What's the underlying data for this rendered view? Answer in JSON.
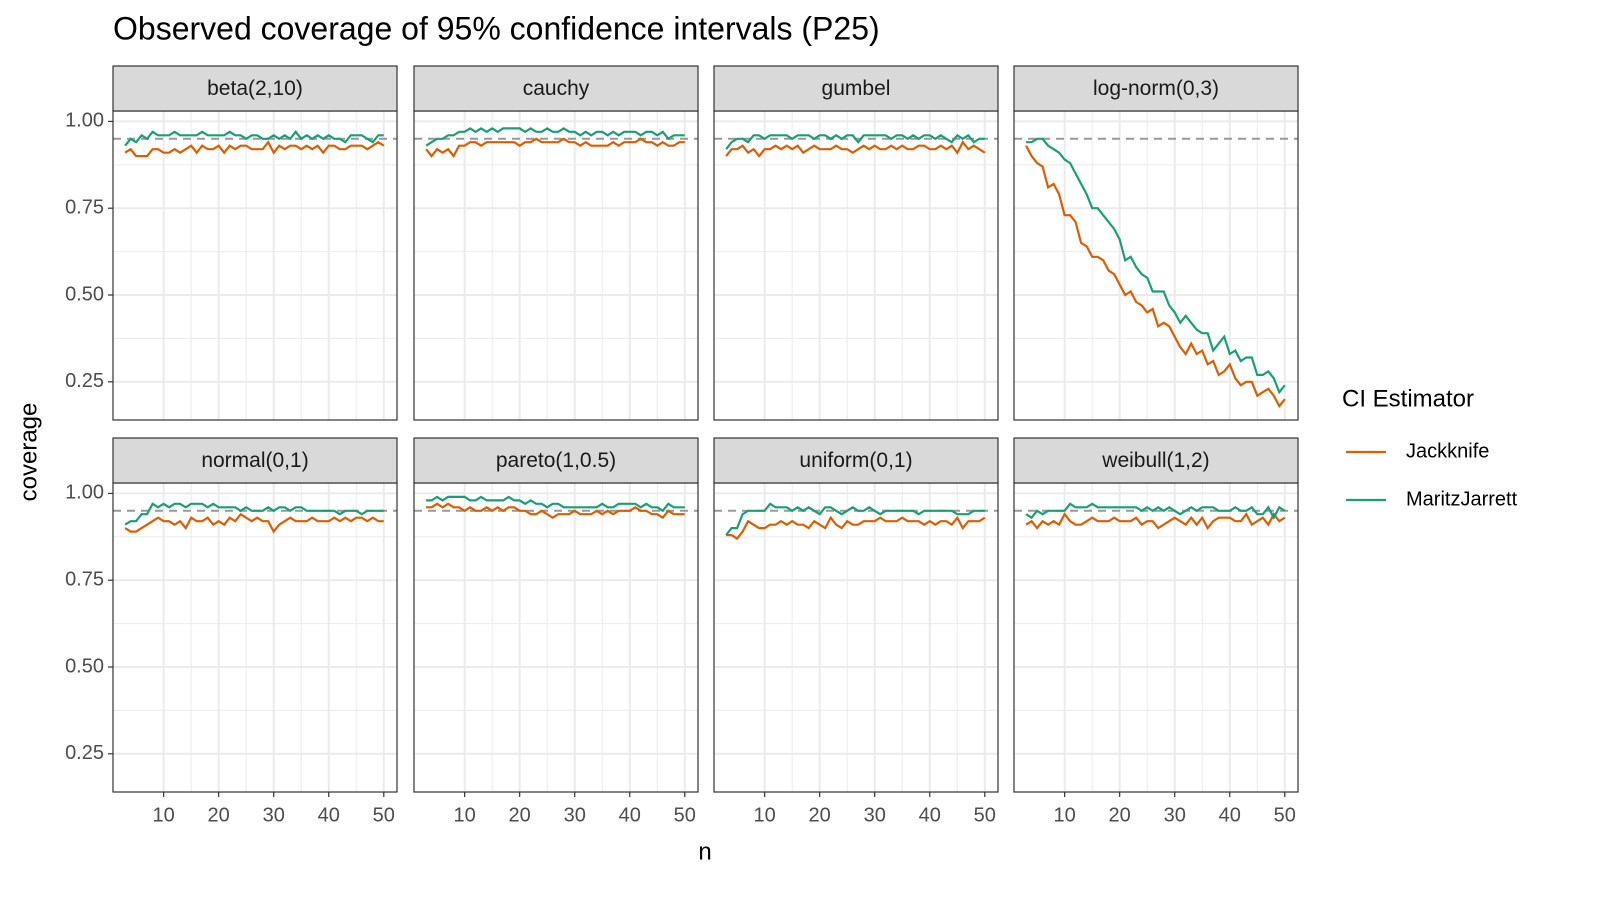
{
  "chart_data": {
    "type": "line",
    "title": "Observed coverage of 95% confidence intervals (P25)",
    "xlabel": "n",
    "ylabel": "coverage",
    "legend_title": "CI Estimator",
    "series": [
      {
        "name": "Jackknife",
        "color": "#d95f02"
      },
      {
        "name": "MaritzJarrett",
        "color": "#1b9e77"
      }
    ],
    "reference_line": 0.95,
    "grid": true,
    "xlim": [
      0.8,
      52.4
    ],
    "xticks": [
      10,
      20,
      30,
      40,
      50
    ],
    "ylim": [
      0.14,
      1.03
    ],
    "yticks": [
      0.25,
      {
        "value": 0.5,
        "label": "0.50"
      },
      0.75,
      {
        "value": 1,
        "label": "1.00"
      }
    ],
    "x": [
      3,
      4,
      5,
      6,
      7,
      8,
      9,
      10,
      11,
      12,
      13,
      14,
      15,
      16,
      17,
      18,
      19,
      20,
      21,
      22,
      23,
      24,
      25,
      26,
      27,
      28,
      29,
      30,
      31,
      32,
      33,
      34,
      35,
      36,
      37,
      38,
      39,
      40,
      41,
      42,
      43,
      44,
      45,
      46,
      47,
      48,
      49,
      50
    ],
    "facets": [
      {
        "title": "beta(2,10)",
        "values": [
          [
            0.91,
            0.92,
            0.9,
            0.9,
            0.9,
            0.92,
            0.92,
            0.91,
            0.91,
            0.92,
            0.91,
            0.92,
            0.93,
            0.91,
            0.93,
            0.92,
            0.92,
            0.93,
            0.91,
            0.93,
            0.92,
            0.93,
            0.93,
            0.92,
            0.92,
            0.92,
            0.94,
            0.91,
            0.93,
            0.92,
            0.93,
            0.93,
            0.92,
            0.93,
            0.92,
            0.93,
            0.91,
            0.93,
            0.93,
            0.92,
            0.92,
            0.93,
            0.93,
            0.93,
            0.92,
            0.93,
            0.94,
            0.93
          ],
          [
            0.93,
            0.95,
            0.94,
            0.96,
            0.95,
            0.97,
            0.96,
            0.96,
            0.96,
            0.97,
            0.96,
            0.96,
            0.96,
            0.96,
            0.97,
            0.96,
            0.96,
            0.96,
            0.96,
            0.97,
            0.96,
            0.96,
            0.95,
            0.96,
            0.96,
            0.95,
            0.95,
            0.96,
            0.95,
            0.96,
            0.95,
            0.97,
            0.95,
            0.96,
            0.95,
            0.96,
            0.95,
            0.96,
            0.95,
            0.95,
            0.94,
            0.96,
            0.96,
            0.96,
            0.95,
            0.94,
            0.96,
            0.96
          ]
        ]
      },
      {
        "title": "cauchy",
        "values": [
          [
            0.92,
            0.9,
            0.92,
            0.91,
            0.92,
            0.9,
            0.93,
            0.93,
            0.94,
            0.94,
            0.93,
            0.94,
            0.94,
            0.94,
            0.94,
            0.94,
            0.94,
            0.93,
            0.94,
            0.94,
            0.95,
            0.94,
            0.94,
            0.94,
            0.94,
            0.95,
            0.94,
            0.94,
            0.93,
            0.94,
            0.93,
            0.93,
            0.93,
            0.93,
            0.94,
            0.93,
            0.94,
            0.94,
            0.94,
            0.95,
            0.94,
            0.94,
            0.93,
            0.94,
            0.93,
            0.93,
            0.94,
            0.94
          ],
          [
            0.93,
            0.94,
            0.95,
            0.95,
            0.96,
            0.96,
            0.97,
            0.97,
            0.98,
            0.97,
            0.98,
            0.97,
            0.98,
            0.97,
            0.98,
            0.98,
            0.98,
            0.98,
            0.97,
            0.98,
            0.97,
            0.97,
            0.98,
            0.97,
            0.97,
            0.98,
            0.97,
            0.97,
            0.96,
            0.97,
            0.96,
            0.97,
            0.97,
            0.96,
            0.97,
            0.96,
            0.97,
            0.97,
            0.97,
            0.96,
            0.97,
            0.97,
            0.96,
            0.97,
            0.95,
            0.96,
            0.96,
            0.96
          ]
        ]
      },
      {
        "title": "gumbel",
        "values": [
          [
            0.9,
            0.92,
            0.92,
            0.93,
            0.91,
            0.92,
            0.9,
            0.92,
            0.92,
            0.93,
            0.92,
            0.93,
            0.92,
            0.93,
            0.91,
            0.92,
            0.93,
            0.92,
            0.92,
            0.92,
            0.93,
            0.92,
            0.92,
            0.91,
            0.92,
            0.93,
            0.92,
            0.93,
            0.92,
            0.92,
            0.93,
            0.92,
            0.93,
            0.92,
            0.92,
            0.93,
            0.93,
            0.92,
            0.92,
            0.93,
            0.92,
            0.93,
            0.91,
            0.94,
            0.92,
            0.93,
            0.92,
            0.91
          ],
          [
            0.92,
            0.94,
            0.95,
            0.95,
            0.94,
            0.96,
            0.96,
            0.95,
            0.96,
            0.96,
            0.96,
            0.96,
            0.95,
            0.96,
            0.96,
            0.96,
            0.95,
            0.96,
            0.96,
            0.95,
            0.96,
            0.95,
            0.96,
            0.96,
            0.94,
            0.96,
            0.96,
            0.96,
            0.96,
            0.96,
            0.95,
            0.96,
            0.96,
            0.95,
            0.96,
            0.95,
            0.96,
            0.96,
            0.95,
            0.96,
            0.95,
            0.94,
            0.96,
            0.95,
            0.96,
            0.94,
            0.95,
            0.95
          ]
        ]
      },
      {
        "title": "log-norm(0,3)",
        "values": [
          [
            0.93,
            0.9,
            0.88,
            0.87,
            0.81,
            0.82,
            0.79,
            0.73,
            0.73,
            0.71,
            0.65,
            0.64,
            0.61,
            0.61,
            0.6,
            0.57,
            0.56,
            0.53,
            0.5,
            0.51,
            0.48,
            0.47,
            0.45,
            0.46,
            0.41,
            0.42,
            0.41,
            0.38,
            0.35,
            0.33,
            0.36,
            0.33,
            0.34,
            0.3,
            0.31,
            0.27,
            0.28,
            0.3,
            0.26,
            0.24,
            0.25,
            0.25,
            0.21,
            0.22,
            0.23,
            0.21,
            0.18,
            0.2
          ],
          [
            0.94,
            0.94,
            0.95,
            0.95,
            0.93,
            0.92,
            0.91,
            0.89,
            0.88,
            0.85,
            0.82,
            0.79,
            0.75,
            0.75,
            0.73,
            0.71,
            0.69,
            0.66,
            0.6,
            0.61,
            0.58,
            0.56,
            0.55,
            0.51,
            0.51,
            0.51,
            0.47,
            0.45,
            0.42,
            0.44,
            0.42,
            0.4,
            0.39,
            0.39,
            0.34,
            0.36,
            0.38,
            0.33,
            0.34,
            0.31,
            0.32,
            0.32,
            0.27,
            0.27,
            0.28,
            0.26,
            0.22,
            0.24
          ]
        ]
      },
      {
        "title": "normal(0,1)",
        "values": [
          [
            0.9,
            0.89,
            0.89,
            0.9,
            0.91,
            0.92,
            0.93,
            0.92,
            0.92,
            0.91,
            0.92,
            0.9,
            0.93,
            0.92,
            0.92,
            0.93,
            0.91,
            0.92,
            0.91,
            0.93,
            0.92,
            0.94,
            0.93,
            0.92,
            0.93,
            0.92,
            0.92,
            0.89,
            0.91,
            0.92,
            0.93,
            0.92,
            0.92,
            0.92,
            0.93,
            0.92,
            0.92,
            0.92,
            0.93,
            0.92,
            0.93,
            0.92,
            0.93,
            0.93,
            0.92,
            0.93,
            0.92,
            0.92
          ],
          [
            0.91,
            0.92,
            0.92,
            0.94,
            0.94,
            0.97,
            0.96,
            0.97,
            0.96,
            0.97,
            0.97,
            0.96,
            0.97,
            0.97,
            0.97,
            0.96,
            0.97,
            0.96,
            0.96,
            0.96,
            0.96,
            0.95,
            0.96,
            0.95,
            0.95,
            0.95,
            0.96,
            0.95,
            0.96,
            0.96,
            0.95,
            0.96,
            0.96,
            0.95,
            0.95,
            0.95,
            0.95,
            0.95,
            0.95,
            0.94,
            0.95,
            0.95,
            0.95,
            0.94,
            0.95,
            0.95,
            0.95,
            0.95
          ]
        ]
      },
      {
        "title": "pareto(1,0.5)",
        "values": [
          [
            0.96,
            0.96,
            0.97,
            0.96,
            0.97,
            0.96,
            0.96,
            0.95,
            0.96,
            0.95,
            0.95,
            0.96,
            0.95,
            0.96,
            0.95,
            0.96,
            0.96,
            0.95,
            0.95,
            0.94,
            0.94,
            0.95,
            0.94,
            0.93,
            0.94,
            0.94,
            0.94,
            0.95,
            0.94,
            0.94,
            0.94,
            0.95,
            0.94,
            0.95,
            0.94,
            0.95,
            0.95,
            0.95,
            0.96,
            0.95,
            0.95,
            0.94,
            0.94,
            0.93,
            0.95,
            0.94,
            0.94,
            0.94
          ],
          [
            0.98,
            0.98,
            0.99,
            0.98,
            0.99,
            0.99,
            0.99,
            0.99,
            0.98,
            0.98,
            0.99,
            0.98,
            0.98,
            0.98,
            0.98,
            0.99,
            0.98,
            0.98,
            0.97,
            0.98,
            0.97,
            0.97,
            0.96,
            0.97,
            0.97,
            0.96,
            0.96,
            0.96,
            0.96,
            0.96,
            0.96,
            0.96,
            0.97,
            0.96,
            0.96,
            0.97,
            0.97,
            0.97,
            0.97,
            0.96,
            0.97,
            0.96,
            0.96,
            0.95,
            0.97,
            0.96,
            0.96,
            0.96
          ]
        ]
      },
      {
        "title": "uniform(0,1)",
        "values": [
          [
            0.88,
            0.88,
            0.87,
            0.89,
            0.92,
            0.91,
            0.9,
            0.9,
            0.91,
            0.91,
            0.92,
            0.91,
            0.92,
            0.91,
            0.91,
            0.9,
            0.92,
            0.91,
            0.9,
            0.93,
            0.91,
            0.9,
            0.92,
            0.91,
            0.91,
            0.92,
            0.92,
            0.92,
            0.93,
            0.92,
            0.92,
            0.92,
            0.93,
            0.92,
            0.92,
            0.92,
            0.91,
            0.92,
            0.91,
            0.92,
            0.92,
            0.91,
            0.93,
            0.9,
            0.92,
            0.92,
            0.92,
            0.93
          ],
          [
            0.88,
            0.9,
            0.9,
            0.94,
            0.95,
            0.95,
            0.95,
            0.95,
            0.97,
            0.96,
            0.96,
            0.96,
            0.95,
            0.96,
            0.95,
            0.96,
            0.95,
            0.94,
            0.96,
            0.96,
            0.95,
            0.94,
            0.95,
            0.96,
            0.95,
            0.95,
            0.96,
            0.95,
            0.94,
            0.95,
            0.95,
            0.95,
            0.95,
            0.95,
            0.95,
            0.94,
            0.95,
            0.95,
            0.95,
            0.95,
            0.95,
            0.95,
            0.94,
            0.94,
            0.94,
            0.95,
            0.95,
            0.95
          ]
        ]
      },
      {
        "title": "weibull(1,2)",
        "values": [
          [
            0.91,
            0.92,
            0.9,
            0.92,
            0.91,
            0.92,
            0.91,
            0.94,
            0.92,
            0.91,
            0.91,
            0.92,
            0.93,
            0.92,
            0.92,
            0.92,
            0.93,
            0.92,
            0.92,
            0.92,
            0.93,
            0.91,
            0.92,
            0.92,
            0.9,
            0.91,
            0.92,
            0.93,
            0.92,
            0.91,
            0.93,
            0.91,
            0.93,
            0.9,
            0.92,
            0.93,
            0.93,
            0.93,
            0.92,
            0.92,
            0.94,
            0.91,
            0.92,
            0.93,
            0.91,
            0.94,
            0.92,
            0.93
          ],
          [
            0.94,
            0.93,
            0.95,
            0.94,
            0.95,
            0.95,
            0.95,
            0.95,
            0.97,
            0.96,
            0.96,
            0.96,
            0.97,
            0.96,
            0.96,
            0.96,
            0.96,
            0.96,
            0.96,
            0.96,
            0.96,
            0.95,
            0.96,
            0.95,
            0.96,
            0.95,
            0.96,
            0.95,
            0.94,
            0.95,
            0.96,
            0.95,
            0.96,
            0.96,
            0.96,
            0.95,
            0.95,
            0.95,
            0.96,
            0.95,
            0.95,
            0.96,
            0.94,
            0.94,
            0.96,
            0.93,
            0.96,
            0.95
          ]
        ]
      }
    ]
  }
}
